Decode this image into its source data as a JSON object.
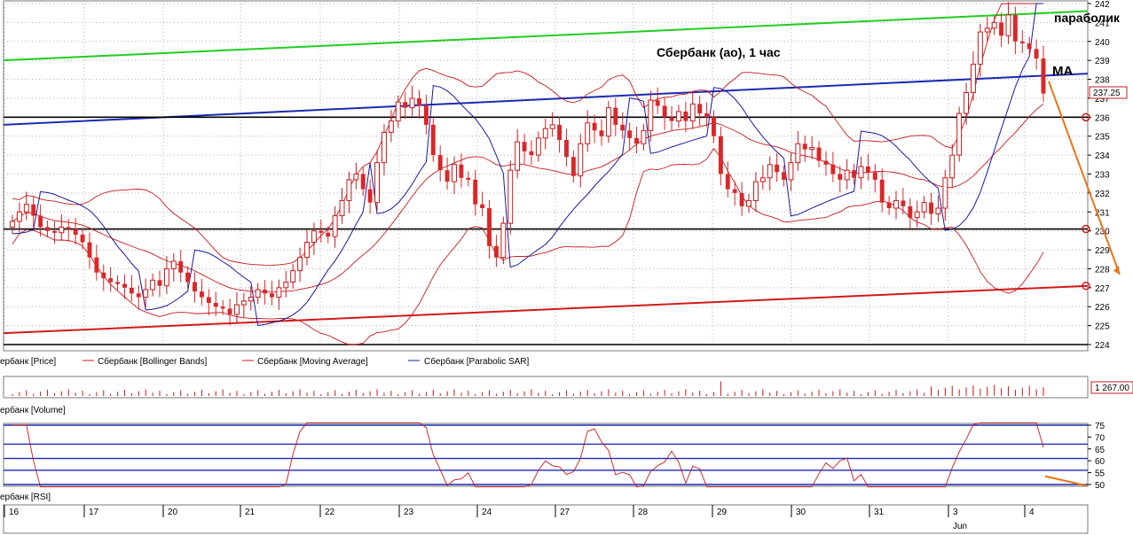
{
  "colors": {
    "bull": "#c8191b",
    "bear": "#d9272a",
    "bollinger": "#c8191b",
    "ma": "#c8191b",
    "sar": "#1a1aa0",
    "green_trend": "#22cc22",
    "blue_trend": "#1a2ab0",
    "red_trend": "#d01a1a",
    "level": "#000000",
    "arrow": "#e8741a",
    "grid": "#b0b0b0"
  },
  "annotations": {
    "title": "Сбербанк (ао),  1 час",
    "parabolic": "параболик",
    "ma": "MA"
  },
  "price_panel": {
    "last_price_label": "237.25",
    "legend": [
      {
        "label": "ербанк [Price]",
        "color": "#c8191b"
      },
      {
        "label": "Сбербанк [Bollinger Bands]",
        "color": "#c8191b"
      },
      {
        "label": "Сбербанк [Moving Average]",
        "color": "#c8191b"
      },
      {
        "label": "Сбербанк [Parabolic SAR]",
        "color": "#1a1aa0"
      }
    ]
  },
  "volume_panel": {
    "label": "ербанк [Volume]",
    "last_value_label": "1 267.00"
  },
  "rsi_panel": {
    "label": "ербанк [RSI]"
  },
  "chart_data": [
    {
      "type": "candlestick",
      "title": "Сбербанк (ао),  1 час",
      "ylim": [
        224,
        242
      ],
      "y_ticks": [
        "224",
        "225",
        "226",
        "227",
        "228",
        "229",
        "230",
        "231",
        "232",
        "233",
        "234",
        "235",
        "236",
        "237",
        "238",
        "239",
        "240",
        "241",
        "242"
      ],
      "x_labels": [
        "16",
        "17",
        "20",
        "21",
        "22",
        "23",
        "24",
        "27",
        "28",
        "29",
        "30",
        "31",
        "3",
        "4"
      ],
      "x_sublabel": "Jun",
      "horizontal_levels": [
        236,
        230.1,
        224
      ],
      "circled_levels": [
        236,
        230.1,
        227.1
      ],
      "trendlines": [
        {
          "color": "green",
          "from": [
            0,
            239.0
          ],
          "to": [
            1.0,
            241.6
          ]
        },
        {
          "color": "blue",
          "from": [
            0,
            235.6
          ],
          "to": [
            1.0,
            238.3
          ]
        },
        {
          "color": "red",
          "from": [
            0,
            224.6
          ],
          "to": [
            1.0,
            227.1
          ]
        }
      ],
      "candles_close": [
        230.5,
        231.0,
        231.4,
        230.8,
        230.2,
        230.0,
        229.9,
        230.2,
        230.1,
        229.8,
        229.4,
        228.6,
        227.8,
        227.5,
        227.3,
        227.2,
        227.0,
        226.7,
        226.5,
        226.9,
        227.4,
        227.1,
        228.0,
        228.4,
        227.8,
        227.3,
        226.8,
        226.5,
        226.2,
        226.0,
        225.9,
        225.6,
        226.1,
        226.3,
        226.5,
        226.9,
        226.7,
        226.5,
        227.0,
        227.3,
        227.9,
        228.6,
        229.4,
        230.0,
        229.9,
        229.7,
        230.8,
        231.6,
        232.7,
        233.0,
        232.2,
        231.5,
        233.6,
        235.2,
        235.8,
        236.8,
        236.5,
        237.0,
        236.6,
        235.6,
        234.0,
        233.2,
        232.6,
        233.5,
        232.8,
        232.7,
        231.4,
        231.2,
        229.2,
        228.6,
        230.4,
        233.2,
        234.7,
        234.2,
        234.0,
        234.9,
        235.4,
        235.6,
        234.8,
        233.9,
        232.9,
        234.6,
        235.7,
        235.3,
        235.0,
        236.5,
        235.6,
        235.3,
        234.9,
        234.6,
        235.3,
        236.9,
        236.6,
        236.0,
        235.8,
        236.3,
        235.8,
        236.7,
        236.2,
        236.0,
        235.0,
        233.0,
        232.2,
        232.0,
        231.3,
        231.6,
        232.6,
        232.8,
        233.5,
        233.1,
        232.7,
        233.6,
        234.6,
        234.3,
        234.4,
        233.7,
        233.5,
        233.0,
        232.7,
        233.2,
        232.8,
        233.4,
        233.1,
        232.7,
        231.5,
        231.2,
        231.6,
        231.3,
        230.7,
        231.0,
        231.5,
        230.9,
        231.2,
        232.8,
        234.0,
        236.2,
        237.3,
        238.8,
        240.5,
        240.7,
        241.0,
        240.3,
        241.4,
        240.0,
        239.9,
        239.6,
        239.1,
        237.25
      ]
    },
    {
      "type": "bar",
      "title": "Volume",
      "last_value": 1267.0
    },
    {
      "type": "line",
      "title": "RSI",
      "ylim": [
        50,
        75
      ],
      "y_ticks": [
        "50",
        "55",
        "60",
        "65",
        "70",
        "75"
      ],
      "reference_levels": [
        75,
        67,
        61,
        56,
        50
      ]
    }
  ]
}
